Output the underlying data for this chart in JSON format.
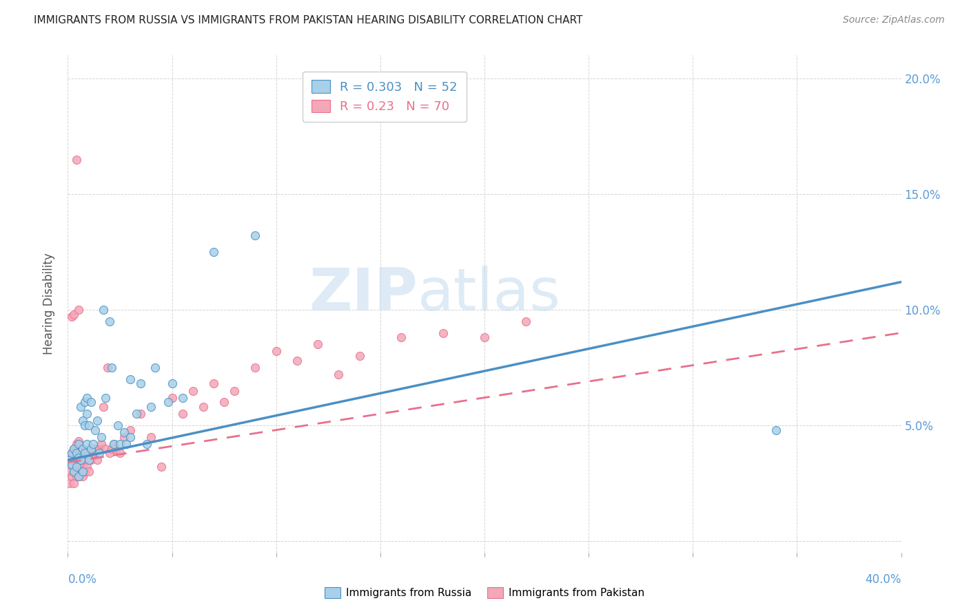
{
  "title": "IMMIGRANTS FROM RUSSIA VS IMMIGRANTS FROM PAKISTAN HEARING DISABILITY CORRELATION CHART",
  "source": "Source: ZipAtlas.com",
  "ylabel": "Hearing Disability",
  "legend_russia": {
    "R": 0.303,
    "N": 52,
    "color": "#a8d0e8"
  },
  "legend_pakistan": {
    "R": 0.23,
    "N": 70,
    "color": "#f4a7b9"
  },
  "russia_scatter_color": "#a8d0e8",
  "pakistan_scatter_color": "#f4a7b9",
  "russia_line_color": "#4a90c4",
  "pakistan_line_color": "#e8708a",
  "watermark_zip": "ZIP",
  "watermark_atlas": "atlas",
  "xlim": [
    0.0,
    0.4
  ],
  "ylim": [
    -0.005,
    0.21
  ],
  "russia_x": [
    0.001,
    0.002,
    0.002,
    0.003,
    0.003,
    0.004,
    0.004,
    0.005,
    0.005,
    0.005,
    0.006,
    0.006,
    0.007,
    0.007,
    0.007,
    0.008,
    0.008,
    0.008,
    0.009,
    0.009,
    0.009,
    0.01,
    0.01,
    0.011,
    0.011,
    0.012,
    0.013,
    0.014,
    0.015,
    0.016,
    0.017,
    0.018,
    0.02,
    0.021,
    0.022,
    0.024,
    0.025,
    0.027,
    0.028,
    0.03,
    0.03,
    0.033,
    0.035,
    0.038,
    0.04,
    0.042,
    0.048,
    0.05,
    0.055,
    0.07,
    0.09,
    0.34
  ],
  "russia_y": [
    0.035,
    0.033,
    0.038,
    0.03,
    0.04,
    0.032,
    0.038,
    0.028,
    0.036,
    0.042,
    0.035,
    0.058,
    0.03,
    0.04,
    0.052,
    0.038,
    0.05,
    0.06,
    0.042,
    0.055,
    0.062,
    0.035,
    0.05,
    0.04,
    0.06,
    0.042,
    0.048,
    0.052,
    0.038,
    0.045,
    0.1,
    0.062,
    0.095,
    0.075,
    0.042,
    0.05,
    0.042,
    0.047,
    0.042,
    0.045,
    0.07,
    0.055,
    0.068,
    0.042,
    0.058,
    0.075,
    0.06,
    0.068,
    0.062,
    0.125,
    0.132,
    0.048
  ],
  "pakistan_x": [
    0.001,
    0.001,
    0.001,
    0.002,
    0.002,
    0.002,
    0.003,
    0.003,
    0.003,
    0.003,
    0.004,
    0.004,
    0.004,
    0.004,
    0.005,
    0.005,
    0.005,
    0.005,
    0.006,
    0.006,
    0.006,
    0.007,
    0.007,
    0.007,
    0.008,
    0.008,
    0.009,
    0.009,
    0.01,
    0.01,
    0.011,
    0.012,
    0.013,
    0.014,
    0.015,
    0.016,
    0.017,
    0.018,
    0.019,
    0.02,
    0.021,
    0.022,
    0.023,
    0.025,
    0.027,
    0.03,
    0.035,
    0.04,
    0.045,
    0.05,
    0.055,
    0.06,
    0.065,
    0.07,
    0.075,
    0.08,
    0.09,
    0.1,
    0.11,
    0.12,
    0.13,
    0.14,
    0.16,
    0.18,
    0.2,
    0.22,
    0.002,
    0.003,
    0.004,
    0.005
  ],
  "pakistan_y": [
    0.03,
    0.035,
    0.025,
    0.028,
    0.033,
    0.038,
    0.025,
    0.03,
    0.035,
    0.04,
    0.028,
    0.032,
    0.038,
    0.042,
    0.028,
    0.033,
    0.038,
    0.043,
    0.03,
    0.035,
    0.04,
    0.028,
    0.033,
    0.038,
    0.03,
    0.035,
    0.032,
    0.038,
    0.03,
    0.038,
    0.035,
    0.038,
    0.04,
    0.035,
    0.04,
    0.042,
    0.058,
    0.04,
    0.075,
    0.038,
    0.04,
    0.042,
    0.04,
    0.038,
    0.045,
    0.048,
    0.055,
    0.045,
    0.032,
    0.062,
    0.055,
    0.065,
    0.058,
    0.068,
    0.06,
    0.065,
    0.075,
    0.082,
    0.078,
    0.085,
    0.072,
    0.08,
    0.088,
    0.09,
    0.088,
    0.095,
    0.097,
    0.098,
    0.165,
    0.1
  ],
  "russia_line_x0": 0.0,
  "russia_line_y0": 0.035,
  "russia_line_x1": 0.4,
  "russia_line_y1": 0.112,
  "pakistan_line_x0": 0.0,
  "pakistan_line_y0": 0.034,
  "pakistan_line_x1": 0.4,
  "pakistan_line_y1": 0.09
}
